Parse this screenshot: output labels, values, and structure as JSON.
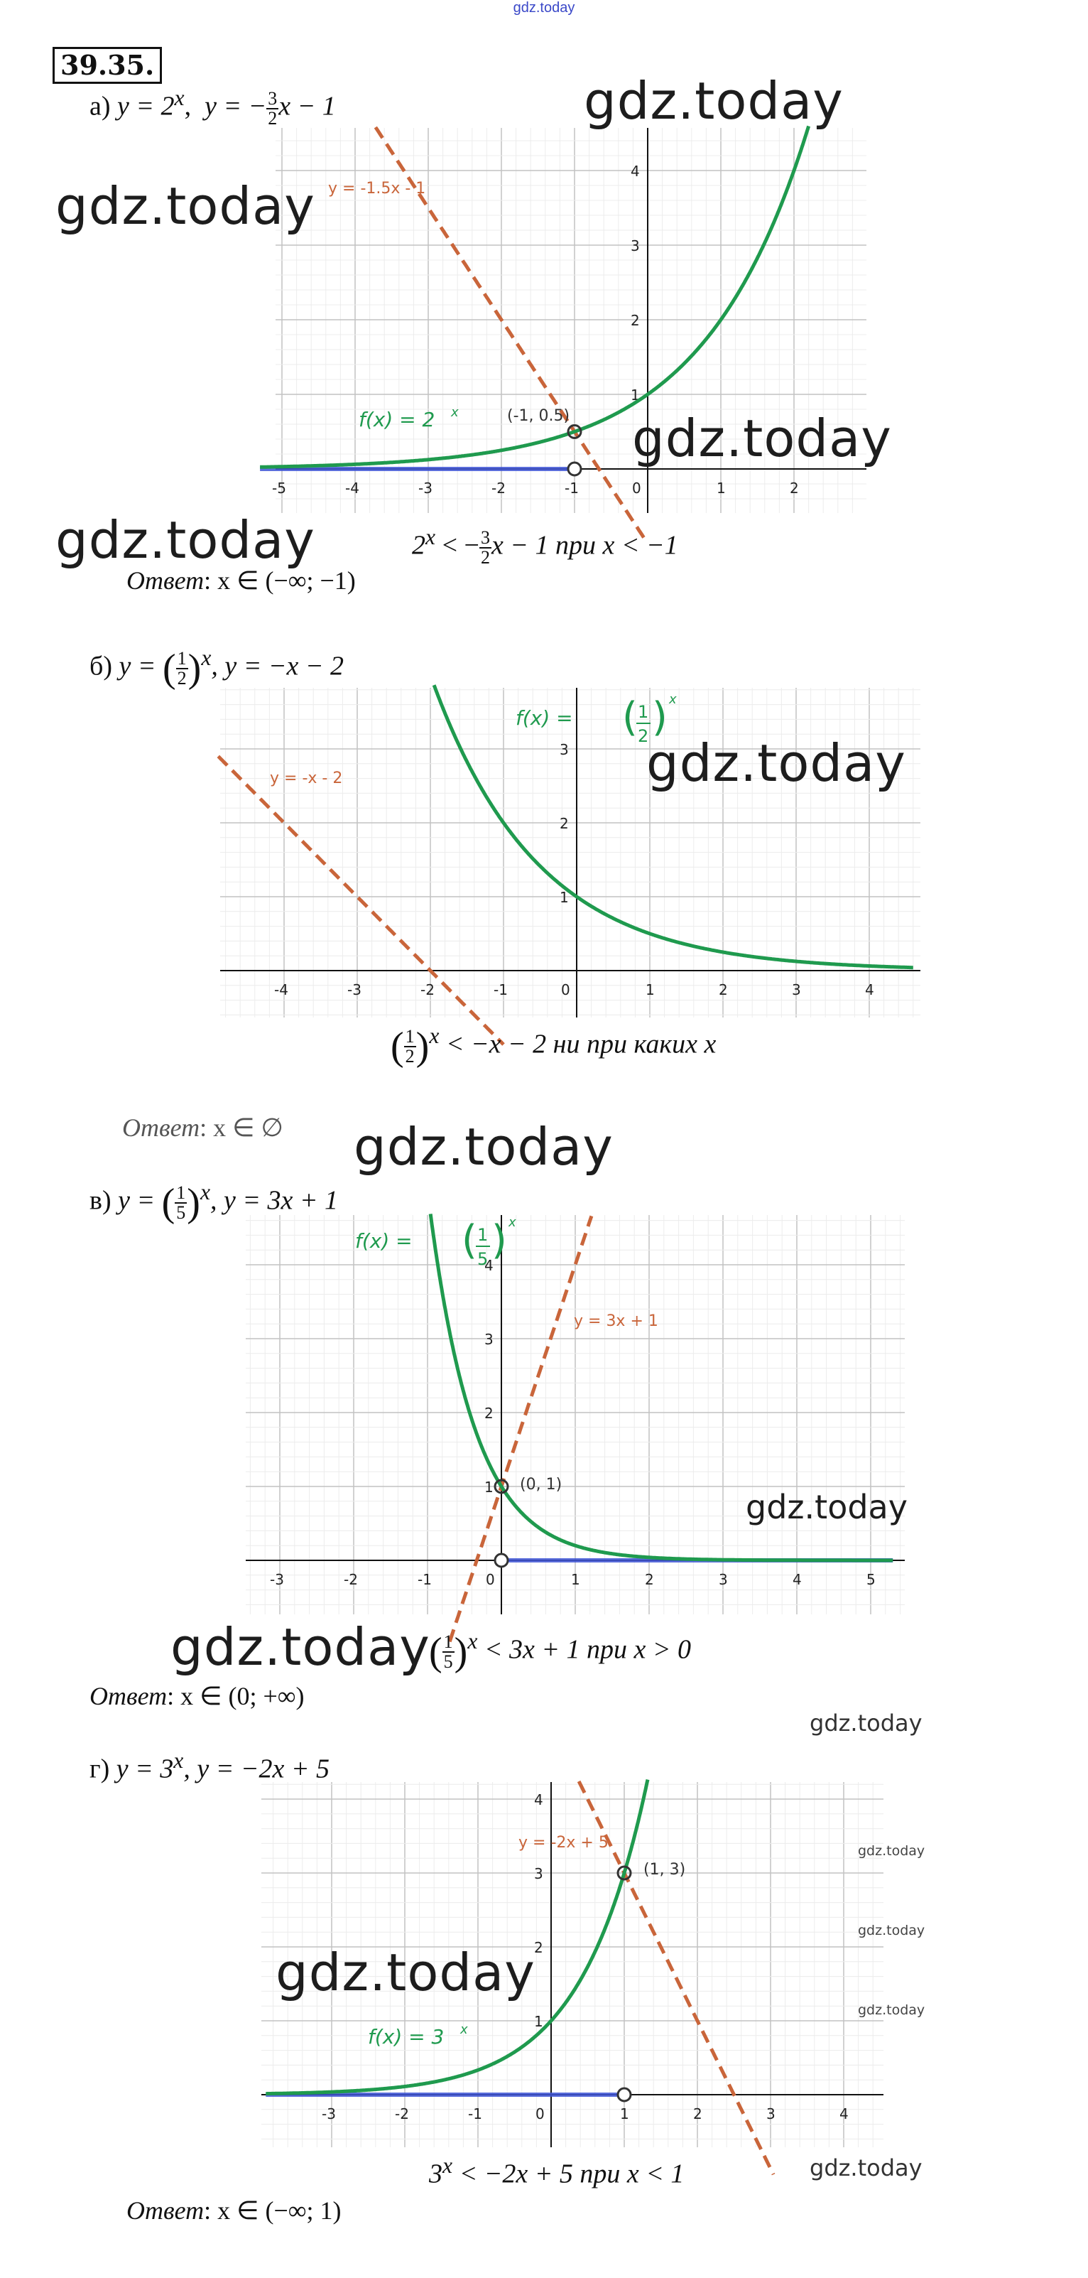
{
  "top_watermark": "gdz.today",
  "problem_number": "39.35.",
  "watermark": "gdz.today",
  "parts": [
    {
      "letter": "а)",
      "func1": "y = 2",
      "func1_exp": "x",
      "func2_pre": "y = −",
      "frac_num": "3",
      "frac_den": "2",
      "func2_post": "x − 1",
      "curve_label": "f(x) = 2",
      "curve_label_exp": "x",
      "line_label": "y = -1.5x - 1",
      "point_label": "(-1, 0.5)",
      "x_ticks": [
        "-5",
        "-4",
        "-3",
        "-2",
        "-1",
        "0",
        "1",
        "2"
      ],
      "y_ticks": [
        "1",
        "2",
        "3",
        "4"
      ],
      "ineq_pre": "2",
      "ineq_exp": "x",
      "ineq_mid": " < −",
      "ineq_post": "x − 1 при x < −1",
      "answer_label": "Ответ",
      "answer": ": x ∈ (−∞; −1)"
    },
    {
      "letter": "б)",
      "func1": "y = ",
      "func1_num": "1",
      "func1_den": "2",
      "func1_exp": "x",
      "func2": ",  y = −x − 2",
      "curve_label": "f(x) = ",
      "curve_label_exp": "x",
      "line_label": "y = -x - 2",
      "x_ticks": [
        "-4",
        "-3",
        "-2",
        "-1",
        "0",
        "1",
        "2",
        "3",
        "4"
      ],
      "y_ticks": [
        "1",
        "2",
        "3"
      ],
      "ineq_num": "1",
      "ineq_den": "2",
      "ineq_exp": "x",
      "ineq_post": " < −x − 2 ни при каких x",
      "answer_label": "Ответ",
      "answer": ": x ∈ ∅"
    },
    {
      "letter": "в)",
      "func1": "y = ",
      "func1_num": "1",
      "func1_den": "5",
      "func1_exp": "x",
      "func2": ",  y = 3x + 1",
      "curve_label": "f(x) = ",
      "curve_label_exp": "x",
      "line_label": "y = 3x + 1",
      "point_label": "(0, 1)",
      "x_ticks": [
        "-3",
        "-2",
        "-1",
        "0",
        "1",
        "2",
        "3",
        "4",
        "5"
      ],
      "y_ticks": [
        "1",
        "2",
        "3",
        "4"
      ],
      "ineq_num": "1",
      "ineq_den": "5",
      "ineq_exp": "x",
      "ineq_post": " < 3x + 1 при x > 0",
      "answer_label": "Ответ",
      "answer": ": x ∈ (0; +∞)"
    },
    {
      "letter": "г)",
      "func1": "y = 3",
      "func1_exp": "x",
      "func2": ",  y = −2x + 5",
      "curve_label": "f(x) = 3",
      "curve_label_exp": "x",
      "line_label": "y = -2x + 5",
      "point_label": "(1, 3)",
      "x_ticks": [
        "-3",
        "-2",
        "-1",
        "0",
        "1",
        "2",
        "3",
        "4"
      ],
      "y_ticks": [
        "1",
        "2",
        "3",
        "4"
      ],
      "ineq_pre": "3",
      "ineq_exp": "x",
      "ineq_post": " < −2x + 5 при x < 1",
      "answer_label": "Ответ",
      "answer": ": x ∈ (−∞; 1)"
    }
  ],
  "colors": {
    "curve": "#1f9a4e",
    "line": "#c9653a",
    "solution": "#3f55d6",
    "grid": "#d3d3d3",
    "axis": "#111111"
  }
}
